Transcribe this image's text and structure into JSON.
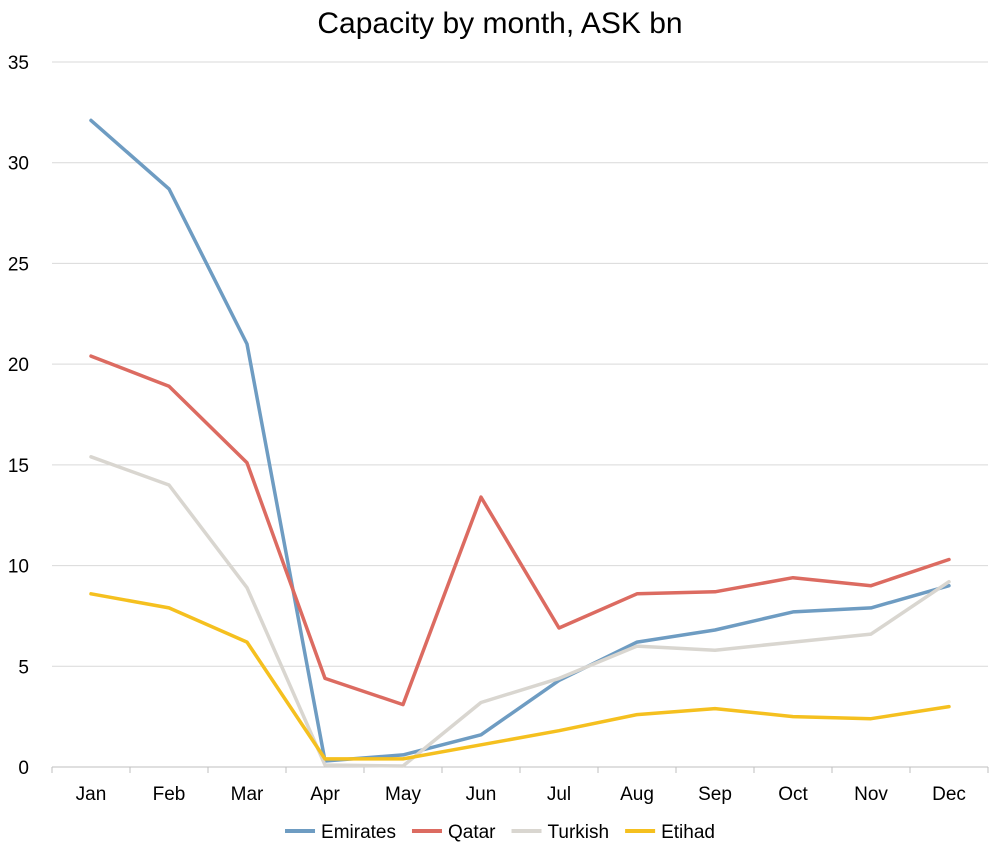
{
  "chart_data": {
    "type": "line",
    "title": "Capacity by month, ASK bn",
    "xlabel": "",
    "ylabel": "",
    "categories": [
      "Jan",
      "Feb",
      "Mar",
      "Apr",
      "May",
      "Jun",
      "Jul",
      "Aug",
      "Sep",
      "Oct",
      "Nov",
      "Dec"
    ],
    "ylim": [
      0,
      35
    ],
    "yticks": [
      "0",
      "5",
      "10",
      "15",
      "20",
      "25",
      "30",
      "35"
    ],
    "grid": true,
    "legend_position": "bottom",
    "series": [
      {
        "name": "Emirates",
        "color": "#6e9cc2",
        "values": [
          32.1,
          28.7,
          21.0,
          0.3,
          0.6,
          1.6,
          4.3,
          6.2,
          6.8,
          7.7,
          7.9,
          9.0
        ]
      },
      {
        "name": "Qatar",
        "color": "#dc6b61",
        "values": [
          20.4,
          18.9,
          15.1,
          4.4,
          3.1,
          13.4,
          6.9,
          8.6,
          8.7,
          9.4,
          9.0,
          10.3
        ]
      },
      {
        "name": "Turkish",
        "color": "#d9d6d0",
        "values": [
          15.4,
          14.0,
          8.9,
          0.1,
          0.05,
          3.2,
          4.4,
          6.0,
          5.8,
          6.2,
          6.6,
          9.2
        ]
      },
      {
        "name": "Etihad",
        "color": "#f5c01f",
        "values": [
          8.6,
          7.9,
          6.2,
          0.4,
          0.4,
          1.1,
          1.8,
          2.6,
          2.9,
          2.5,
          2.4,
          3.0
        ]
      }
    ]
  }
}
